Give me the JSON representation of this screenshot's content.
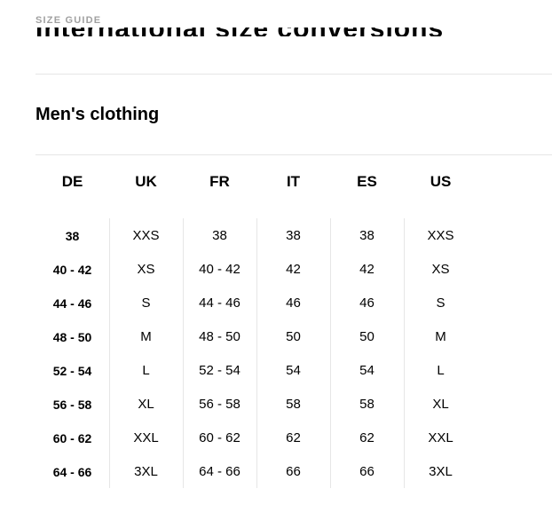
{
  "header": {
    "eyebrow": "SIZE GUIDE",
    "title": "International size conversions"
  },
  "section": {
    "title": "Men's clothing"
  },
  "table": {
    "columns": [
      "DE",
      "UK",
      "FR",
      "IT",
      "ES",
      "US"
    ],
    "rows": [
      [
        "38",
        "XXS",
        "38",
        "38",
        "38",
        "XXS"
      ],
      [
        "40 - 42",
        "XS",
        "40 - 42",
        "42",
        "42",
        "XS"
      ],
      [
        "44 - 46",
        "S",
        "44 - 46",
        "46",
        "46",
        "S"
      ],
      [
        "48 - 50",
        "M",
        "48 - 50",
        "50",
        "50",
        "M"
      ],
      [
        "52 - 54",
        "L",
        "52 - 54",
        "54",
        "54",
        "L"
      ],
      [
        "56 - 58",
        "XL",
        "56 - 58",
        "58",
        "58",
        "XL"
      ],
      [
        "60 - 62",
        "XXL",
        "60 - 62",
        "62",
        "62",
        "XXL"
      ],
      [
        "64 - 66",
        "3XL",
        "64 - 66",
        "66",
        "66",
        "3XL"
      ]
    ]
  }
}
